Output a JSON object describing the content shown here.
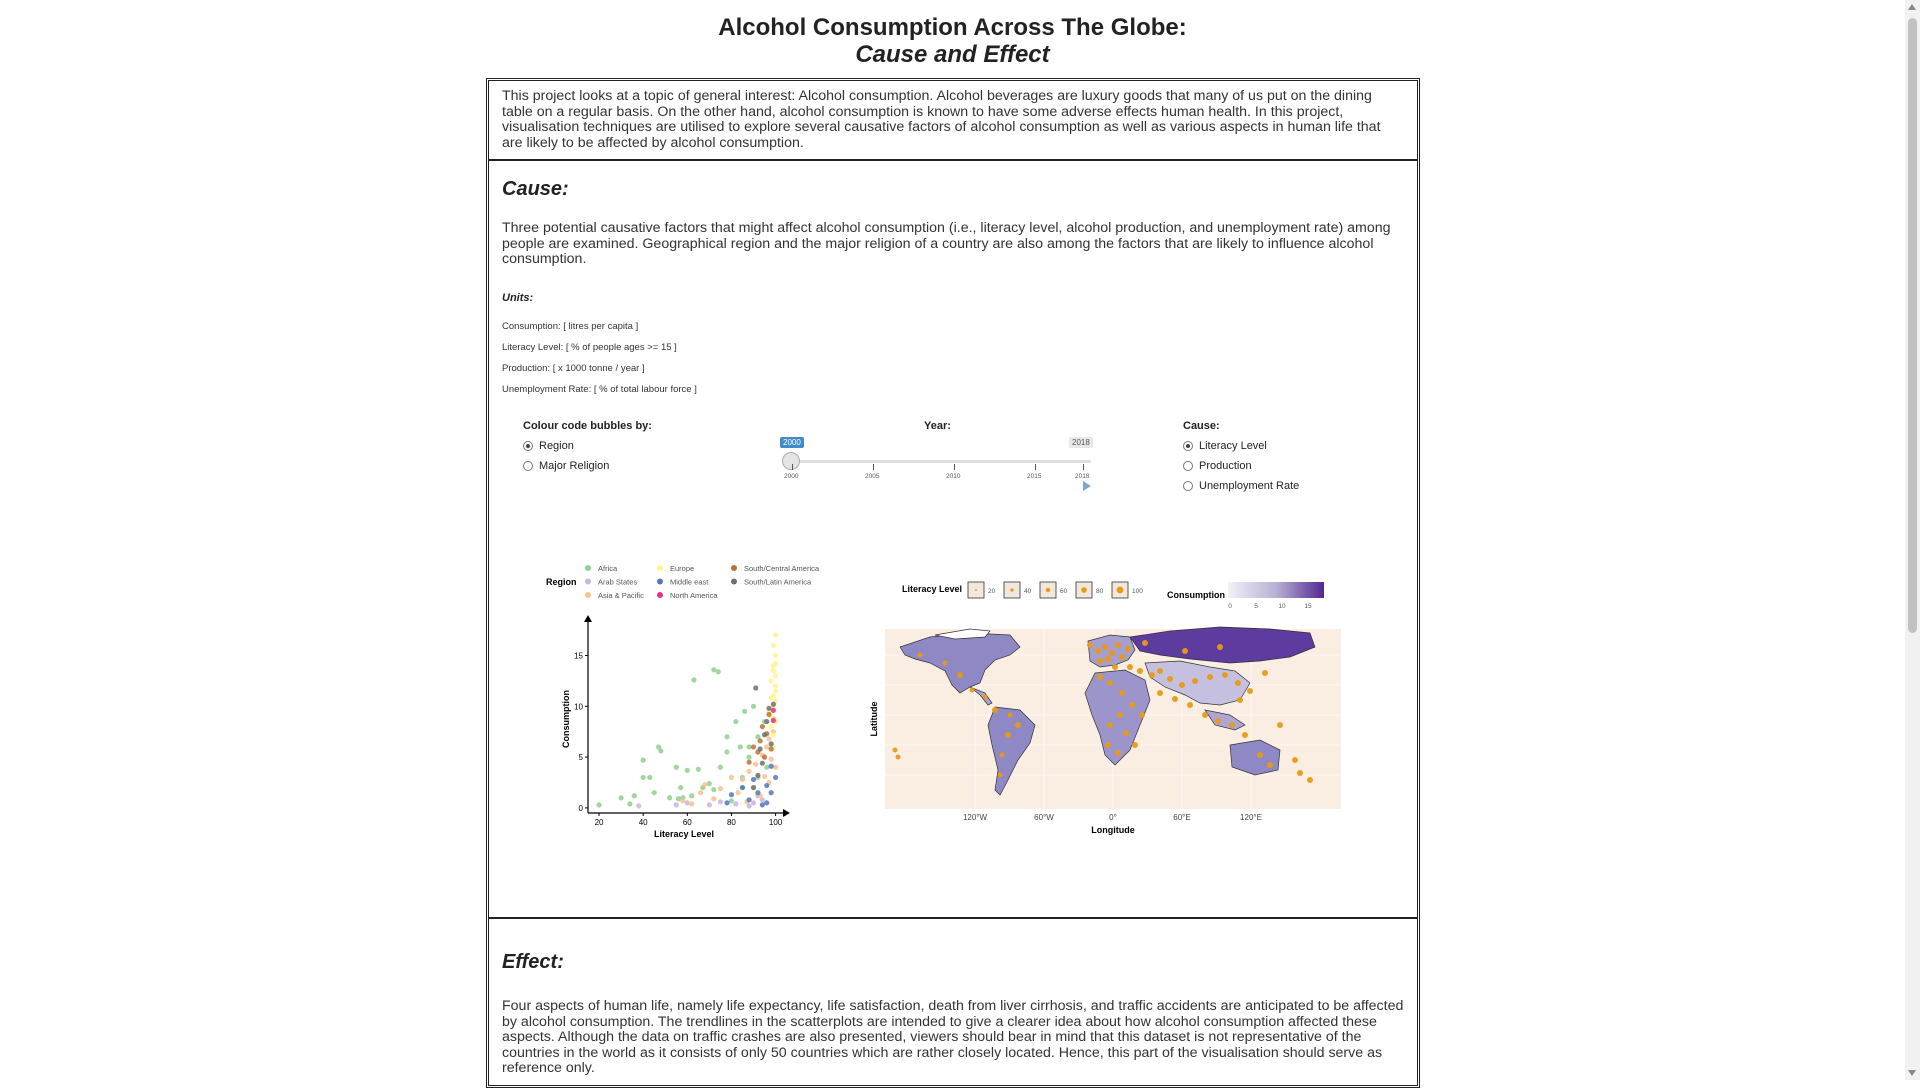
{
  "title": {
    "line1": "Alcohol Consumption Across The Globe:",
    "line2": "Cause and Effect"
  },
  "intro": "This project looks at a topic of general interest: Alcohol consumption. Alcohol beverages are luxury goods that many of us put on the dining table on a regular basis. On the other hand, alcohol consumption is known to have some adverse effects human health. In this project, visualisation techniques are utilised to explore several causative factors of alcohol consumption as well as various aspects in human life that are likely to be affected by alcohol consumption.",
  "cause": {
    "heading": "Cause:",
    "text": "Three potential causative factors that might affect alcohol consumption (i.e., literacy level, alcohol production, and unemployment rate) among people are examined. Geographical region and the major religion of a country are also among the factors that are likely to influence alcohol consumption.",
    "units_heading": "Units:",
    "units": [
      "Consumption: [ litres per capita ]",
      "Literacy Level: [ % of people ages >= 15 ]",
      "Production: [ x 1000 tonne / year ]",
      "Unemployment Rate: [ % of total labour force ]"
    ]
  },
  "controls": {
    "colour_label": "Colour code bubbles by:",
    "colour_options": [
      "Region",
      "Major Religion"
    ],
    "colour_selected": "Region",
    "year_label": "Year:",
    "year_min": "2000",
    "year_max": "2018",
    "year_value": "2000",
    "year_ticks": [
      "2000",
      "2005",
      "2010",
      "2015",
      "2018"
    ],
    "cause_label": "Cause:",
    "cause_options": [
      "Literacy Level",
      "Production",
      "Unemployment Rate"
    ],
    "cause_selected": "Literacy Level"
  },
  "scatter": {
    "legend_title": "Region",
    "legend": [
      {
        "name": "Africa",
        "color": "#8ed08e"
      },
      {
        "name": "Arab States",
        "color": "#c9b4dc"
      },
      {
        "name": "Asia & Pacific",
        "color": "#f9c08e"
      },
      {
        "name": "Europe",
        "color": "#fdf58e"
      },
      {
        "name": "Middle east",
        "color": "#5577b8"
      },
      {
        "name": "North America",
        "color": "#e8317f"
      },
      {
        "name": "South/Central America",
        "color": "#b9742f"
      },
      {
        "name": "South/Latin America",
        "color": "#707070"
      }
    ],
    "xlabel": "Literacy Level",
    "ylabel": "Consumption"
  },
  "map": {
    "legend_literacy_title": "Literacy Level",
    "legend_literacy_values": [
      "20",
      "40",
      "60",
      "80",
      "100"
    ],
    "legend_consumption_title": "Consumption",
    "legend_consumption_ticks": [
      "0",
      "5",
      "10",
      "15"
    ],
    "xlabel": "Longitude",
    "ylabel": "Latitude",
    "lon_ticks": [
      "120°W",
      "60°W",
      "0°",
      "60°E",
      "120°E"
    ]
  },
  "chart_data": [
    {
      "type": "scatter",
      "title": "",
      "xlabel": "Literacy Level",
      "ylabel": "Consumption",
      "xlim": [
        15,
        102
      ],
      "ylim": [
        -0.5,
        18
      ],
      "x_ticks": [
        20,
        40,
        60,
        80,
        100
      ],
      "y_ticks": [
        0,
        5,
        10,
        15
      ],
      "series": [
        {
          "name": "Africa",
          "points": [
            [
              20,
              0.3
            ],
            [
              30,
              1
            ],
            [
              34,
              0.4
            ],
            [
              36,
              1.2
            ],
            [
              43,
              3
            ],
            [
              45,
              1.5
            ],
            [
              47,
              6
            ],
            [
              52,
              1
            ],
            [
              57,
              2
            ],
            [
              62,
              1.2
            ],
            [
              67,
              2
            ],
            [
              72,
              1.8
            ],
            [
              75,
              4
            ],
            [
              80,
              0.7
            ],
            [
              85,
              3
            ],
            [
              88,
              6
            ],
            [
              63,
              12.6
            ],
            [
              72,
              13.6
            ],
            [
              74,
              13.4
            ],
            [
              40,
              4.7
            ],
            [
              40,
              3
            ],
            [
              48,
              5.6
            ],
            [
              56,
              0.9
            ],
            [
              55,
              4
            ],
            [
              58,
              1
            ],
            [
              65,
              3.8
            ],
            [
              78,
              7
            ],
            [
              82,
              8.5
            ],
            [
              86,
              9.5
            ],
            [
              90,
              10
            ],
            [
              88,
              5
            ],
            [
              92,
              7
            ],
            [
              95,
              8.5
            ],
            [
              70,
              2.4
            ],
            [
              78,
              5.5
            ],
            [
              84,
              6
            ],
            [
              60,
              3.7
            ],
            [
              85,
              2
            ],
            [
              92,
              3
            ],
            [
              96,
              4
            ]
          ]
        },
        {
          "name": "Arab States",
          "points": [
            [
              38,
              0.2
            ],
            [
              55,
              0.3
            ],
            [
              60,
              0.5
            ],
            [
              70,
              0.3
            ],
            [
              75,
              0.6
            ],
            [
              82,
              0.4
            ],
            [
              88,
              0.2
            ],
            [
              90,
              0.5
            ],
            [
              92,
              1.2
            ],
            [
              94,
              0.8
            ]
          ]
        },
        {
          "name": "Asia & Pacific",
          "points": [
            [
              58,
              0.7
            ],
            [
              62,
              0.4
            ],
            [
              66,
              1.5
            ],
            [
              68,
              2.3
            ],
            [
              72,
              0.9
            ],
            [
              75,
              1.9
            ],
            [
              80,
              3
            ],
            [
              83,
              1.5
            ],
            [
              85,
              2.8
            ],
            [
              87,
              0.6
            ],
            [
              88,
              3.6
            ],
            [
              90,
              2
            ],
            [
              91,
              4.3
            ],
            [
              93,
              1.2
            ],
            [
              94,
              5.2
            ],
            [
              95,
              3.1
            ],
            [
              96,
              6
            ],
            [
              97,
              2.5
            ],
            [
              98,
              4.8
            ],
            [
              99,
              7.5
            ],
            [
              99,
              8.8
            ],
            [
              100,
              4
            ],
            [
              97,
              6.8
            ]
          ]
        },
        {
          "name": "Europe",
          "points": [
            [
              98,
              9
            ],
            [
              99,
              10
            ],
            [
              99,
              11
            ],
            [
              100,
              12
            ],
            [
              100,
              13
            ],
            [
              99,
              14
            ],
            [
              100,
              15
            ],
            [
              99,
              16
            ],
            [
              100,
              17
            ],
            [
              98,
              12.5
            ],
            [
              99,
              9.8
            ],
            [
              100,
              10.5
            ],
            [
              100,
              11.5
            ],
            [
              98,
              8
            ],
            [
              99,
              13.5
            ],
            [
              100,
              14.2
            ],
            [
              98,
              10.8
            ],
            [
              99,
              7.2
            ],
            [
              97,
              9.4
            ],
            [
              100,
              8.5
            ],
            [
              99,
              6
            ]
          ]
        },
        {
          "name": "Middle east",
          "points": [
            [
              78,
              0.5
            ],
            [
              80,
              1.3
            ],
            [
              85,
              2
            ],
            [
              88,
              0.8
            ],
            [
              90,
              2.8
            ],
            [
              92,
              1.5
            ],
            [
              94,
              0.3
            ],
            [
              96,
              2.2
            ],
            [
              98,
              4.1
            ],
            [
              100,
              3
            ],
            [
              96,
              0.5
            ],
            [
              98,
              1.5
            ]
          ]
        },
        {
          "name": "North America",
          "points": [
            [
              99,
              9.6
            ],
            [
              99,
              8.6
            ]
          ]
        },
        {
          "name": "South/Central America",
          "points": [
            [
              88,
              4.5
            ],
            [
              92,
              5.5
            ],
            [
              93,
              6.6
            ],
            [
              95,
              5
            ],
            [
              96,
              7.3
            ],
            [
              94,
              8
            ],
            [
              90,
              6
            ],
            [
              97,
              9.2
            ],
            [
              98,
              5.8
            ]
          ]
        },
        {
          "name": "South/Latin America",
          "points": [
            [
              90,
              2
            ],
            [
              92,
              3.2
            ],
            [
              93,
              5.8
            ],
            [
              95,
              7.2
            ],
            [
              96,
              8.5
            ],
            [
              97,
              9.8
            ],
            [
              94,
              4.4
            ],
            [
              98,
              6.3
            ],
            [
              91,
              11.8
            ],
            [
              99,
              10.2
            ]
          ]
        }
      ]
    }
  ]
}
